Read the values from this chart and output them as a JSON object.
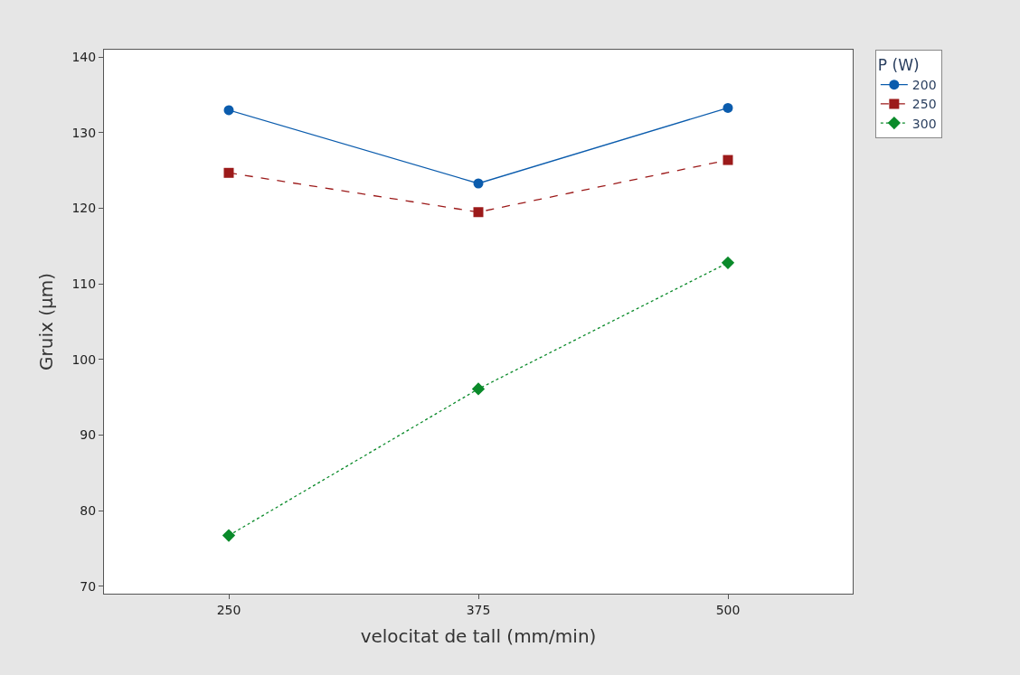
{
  "chart_data": {
    "type": "line",
    "xlabel": "velocitat de tall (mm/min)",
    "ylabel": "Gruix (µm)",
    "legend_title": "P (W)",
    "categories": [
      "250",
      "375",
      "500"
    ],
    "series": [
      {
        "name": "200",
        "color": "#0b5cad",
        "values": [
          133.0,
          123.3,
          133.3
        ],
        "marker": "circle",
        "line_style": "solid"
      },
      {
        "name": "250",
        "color": "#9c1a1a",
        "values": [
          124.7,
          119.5,
          126.4
        ],
        "marker": "square",
        "line_style": "dashed"
      },
      {
        "name": "300",
        "color": "#0a8a2a",
        "values": [
          76.7,
          96.1,
          112.8
        ],
        "marker": "diamond",
        "line_style": "dotted"
      }
    ],
    "ylim": [
      69,
      141
    ],
    "yticks": [
      70,
      80,
      90,
      100,
      110,
      120,
      130,
      140
    ],
    "legend": "top right"
  }
}
